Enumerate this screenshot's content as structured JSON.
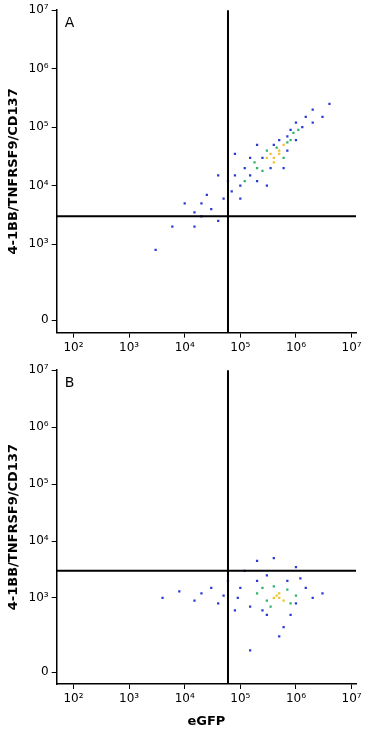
{
  "chart_data": [
    {
      "type": "scatter",
      "title": "A",
      "y_label": "4-1BB/TNFRSF9/CD137",
      "xlim": [
        50,
        12000000
      ],
      "ylim": [
        -50,
        10000000
      ],
      "xticks": [
        {
          "value": 100,
          "label": "10²"
        },
        {
          "value": 1000,
          "label": "10³"
        },
        {
          "value": 10000,
          "label": "10⁴"
        },
        {
          "value": 100000,
          "label": "10⁵"
        },
        {
          "value": 1000000,
          "label": "10⁶"
        },
        {
          "value": 10000000,
          "label": "10⁷"
        }
      ],
      "yticks": [
        0,
        {
          "value": 1000,
          "label": "10³"
        },
        {
          "value": 10000,
          "label": "10⁴"
        },
        {
          "value": 100000,
          "label": "10⁵"
        },
        {
          "value": 1000000,
          "label": "10⁶"
        },
        {
          "value": 10000000,
          "label": "10⁷"
        }
      ],
      "log": true,
      "grid": false,
      "gates": {
        "x": 60000,
        "y": 3000
      },
      "series": [
        {
          "color": "#2b3bd6",
          "values": [
            [
              3000,
              800
            ],
            [
              6000,
              2000
            ],
            [
              10000,
              5000
            ],
            [
              15000,
              2000
            ],
            [
              15000,
              3500
            ],
            [
              20000,
              3000
            ],
            [
              20000,
              5000
            ],
            [
              25000,
              7000
            ],
            [
              30000,
              4000
            ],
            [
              40000,
              2500
            ],
            [
              40000,
              15000
            ],
            [
              50000,
              6000
            ],
            [
              60000,
              12000
            ],
            [
              70000,
              8000
            ],
            [
              80000,
              15000
            ],
            [
              80000,
              35000
            ],
            [
              100000,
              10000
            ],
            [
              100000,
              6000
            ],
            [
              120000,
              20000
            ],
            [
              150000,
              15000
            ],
            [
              150000,
              30000
            ],
            [
              200000,
              12000
            ],
            [
              200000,
              50000
            ],
            [
              250000,
              30000
            ],
            [
              300000,
              10000
            ],
            [
              350000,
              20000
            ],
            [
              400000,
              50000
            ],
            [
              500000,
              60000
            ],
            [
              600000,
              20000
            ],
            [
              700000,
              70000
            ],
            [
              700000,
              40000
            ],
            [
              800000,
              90000
            ],
            [
              1000000,
              60000
            ],
            [
              1000000,
              120000
            ],
            [
              1300000,
              100000
            ],
            [
              1500000,
              150000
            ],
            [
              2000000,
              120000
            ],
            [
              2000000,
              200000
            ],
            [
              3000000,
              150000
            ],
            [
              4000000,
              250000
            ]
          ]
        },
        {
          "color": "#2fb36a",
          "values": [
            [
              120000,
              12000
            ],
            [
              180000,
              25000
            ],
            [
              200000,
              20000
            ],
            [
              250000,
              18000
            ],
            [
              300000,
              40000
            ],
            [
              450000,
              45000
            ],
            [
              600000,
              30000
            ],
            [
              700000,
              55000
            ],
            [
              800000,
              60000
            ],
            [
              900000,
              80000
            ],
            [
              1100000,
              90000
            ]
          ]
        },
        {
          "color": "#f2c12e",
          "values": [
            [
              300000,
              30000
            ],
            [
              350000,
              35000
            ],
            [
              400000,
              30000
            ],
            [
              400000,
              25000
            ],
            [
              500000,
              40000
            ],
            [
              500000,
              35000
            ],
            [
              600000,
              50000
            ]
          ]
        }
      ]
    },
    {
      "type": "scatter",
      "title": "B",
      "y_label": "4-1BB/TNFRSF9/CD137",
      "x_label": "eGFP",
      "xlim": [
        50,
        12000000
      ],
      "ylim": [
        -50,
        10000000
      ],
      "xticks": [
        {
          "value": 100,
          "label": "10²"
        },
        {
          "value": 1000,
          "label": "10³"
        },
        {
          "value": 10000,
          "label": "10⁴"
        },
        {
          "value": 100000,
          "label": "10⁵"
        },
        {
          "value": 1000000,
          "label": "10⁶"
        },
        {
          "value": 10000000,
          "label": "10⁷"
        }
      ],
      "yticks": [
        0,
        {
          "value": 1000,
          "label": "10³"
        },
        {
          "value": 10000,
          "label": "10⁴"
        },
        {
          "value": 100000,
          "label": "10⁵"
        },
        {
          "value": 1000000,
          "label": "10⁶"
        },
        {
          "value": 10000000,
          "label": "10⁷"
        }
      ],
      "log": true,
      "grid": false,
      "gates": {
        "x": 60000,
        "y": 3000
      },
      "series": [
        {
          "color": "#2b3bd6",
          "values": [
            [
              4000,
              1000
            ],
            [
              8000,
              1300
            ],
            [
              15000,
              900
            ],
            [
              20000,
              1200
            ],
            [
              30000,
              1500
            ],
            [
              40000,
              800
            ],
            [
              50000,
              1100
            ],
            [
              60000,
              2000
            ],
            [
              80000,
              600
            ],
            [
              100000,
              1500
            ],
            [
              120000,
              3000
            ],
            [
              150000,
              700
            ],
            [
              150000,
              100
            ],
            [
              200000,
              2000
            ],
            [
              200000,
              4500
            ],
            [
              300000,
              500
            ],
            [
              300000,
              2500
            ],
            [
              400000,
              5000
            ],
            [
              500000,
              200
            ],
            [
              600000,
              300
            ],
            [
              700000,
              2000
            ],
            [
              1000000,
              3500
            ],
            [
              1000000,
              800
            ],
            [
              1500000,
              1500
            ],
            [
              2000000,
              1000
            ],
            [
              3000000,
              1200
            ],
            [
              90000,
              1000
            ],
            [
              250000,
              600
            ],
            [
              800000,
              500
            ],
            [
              1200000,
              2200
            ]
          ]
        },
        {
          "color": "#2fb36a",
          "values": [
            [
              200000,
              1200
            ],
            [
              250000,
              1500
            ],
            [
              300000,
              900
            ],
            [
              400000,
              1600
            ],
            [
              700000,
              1400
            ],
            [
              1000000,
              1100
            ],
            [
              800000,
              800
            ],
            [
              350000,
              700
            ]
          ]
        },
        {
          "color": "#f2c12e",
          "values": [
            [
              400000,
              1000
            ],
            [
              500000,
              1200
            ],
            [
              500000,
              1000
            ],
            [
              600000,
              900
            ],
            [
              450000,
              1100
            ]
          ]
        }
      ]
    }
  ]
}
